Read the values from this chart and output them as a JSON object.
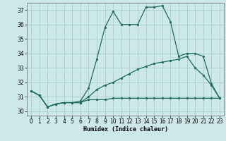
{
  "title": "",
  "xlabel": "Humidex (Indice chaleur)",
  "background_color": "#cde8e8",
  "grid_color": "#aacccc",
  "line_color": "#1a6b5a",
  "xlim": [
    -0.5,
    23.5
  ],
  "ylim": [
    29.7,
    37.5
  ],
  "yticks": [
    30,
    31,
    32,
    33,
    34,
    35,
    36,
    37
  ],
  "xticks": [
    0,
    1,
    2,
    3,
    4,
    5,
    6,
    7,
    8,
    9,
    10,
    11,
    12,
    13,
    14,
    15,
    16,
    17,
    18,
    19,
    20,
    21,
    22,
    23
  ],
  "line1_x": [
    0,
    1,
    2,
    3,
    4,
    5,
    6,
    7,
    8,
    9,
    10,
    11,
    12,
    13,
    14,
    15,
    16,
    17,
    18,
    19,
    20,
    21,
    22,
    23
  ],
  "line1_y": [
    31.4,
    31.1,
    30.3,
    30.5,
    30.6,
    30.6,
    30.6,
    30.8,
    30.8,
    30.8,
    30.9,
    30.9,
    30.9,
    30.9,
    30.9,
    30.9,
    30.9,
    30.9,
    30.9,
    30.9,
    30.9,
    30.9,
    30.9,
    30.9
  ],
  "line2_x": [
    0,
    1,
    2,
    3,
    4,
    5,
    6,
    7,
    8,
    9,
    10,
    11,
    12,
    13,
    14,
    15,
    16,
    17,
    18,
    19,
    20,
    21,
    22,
    23
  ],
  "line2_y": [
    31.4,
    31.1,
    30.3,
    30.5,
    30.6,
    30.6,
    30.6,
    31.0,
    31.5,
    31.8,
    32.0,
    32.3,
    32.6,
    32.9,
    33.1,
    33.3,
    33.4,
    33.5,
    33.6,
    33.8,
    33.0,
    32.5,
    31.8,
    30.9
  ],
  "line3_x": [
    0,
    1,
    2,
    3,
    4,
    5,
    6,
    7,
    8,
    9,
    10,
    11,
    12,
    13,
    14,
    15,
    16,
    17,
    18,
    19,
    20,
    21,
    22,
    23
  ],
  "line3_y": [
    31.4,
    31.1,
    30.3,
    30.5,
    30.6,
    30.6,
    30.7,
    31.6,
    33.6,
    35.8,
    36.9,
    36.0,
    36.0,
    36.0,
    37.2,
    37.2,
    37.3,
    36.2,
    33.8,
    34.0,
    34.0,
    33.8,
    31.9,
    30.9
  ],
  "label_fontsize": 6,
  "tick_fontsize": 5.5
}
